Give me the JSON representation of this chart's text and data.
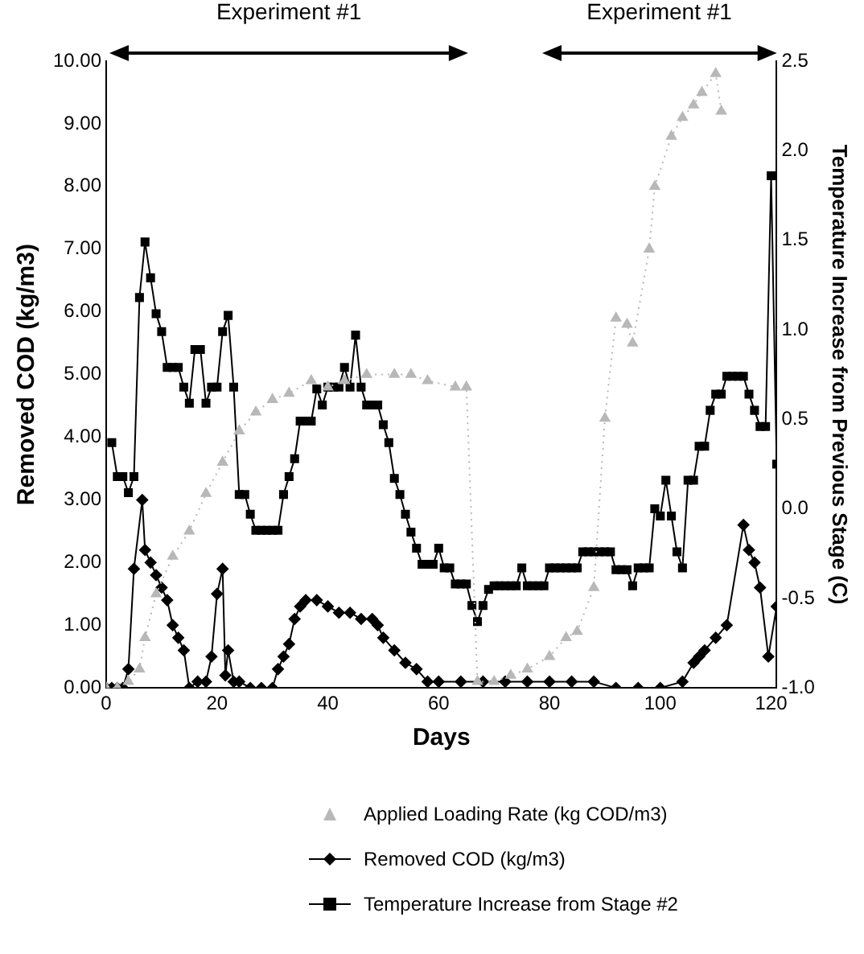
{
  "chart_data": {
    "type": "line",
    "xlabel": "Days",
    "ylabel": "Removed COD (kg/m3)",
    "y2label": "Temperature Increase from Previous Stage (C)",
    "xlim": [
      0,
      121
    ],
    "xticks": [
      0,
      20,
      40,
      60,
      80,
      100,
      120
    ],
    "ylim": [
      0,
      10
    ],
    "yticks": [
      {
        "value": 0,
        "label": "0.00"
      },
      {
        "value": 1,
        "label": "1.00"
      },
      {
        "value": 2,
        "label": "2.00"
      },
      {
        "value": 3,
        "label": "3.00"
      },
      {
        "value": 4,
        "label": "4.00"
      },
      {
        "value": 5,
        "label": "5.00"
      },
      {
        "value": 6,
        "label": "6.00"
      },
      {
        "value": 7,
        "label": "7.00"
      },
      {
        "value": 8,
        "label": "8.00"
      },
      {
        "value": 9,
        "label": "9.00"
      },
      {
        "value": 10,
        "label": "10.00"
      }
    ],
    "y2lim": [
      -1,
      2.5
    ],
    "y2ticks": [
      {
        "value": -1,
        "label": "-1.0"
      },
      -0.5,
      {
        "value": 0,
        "label": "0.0"
      },
      0.5,
      {
        "value": 1,
        "label": "1.0"
      },
      1.5,
      {
        "value": 2,
        "label": "2.0"
      },
      2.5
    ],
    "grid": false,
    "legend": "bottom",
    "annotations": [
      "Experiment #1",
      "Experiment #1"
    ],
    "series": [
      {
        "name": "Applied Loading Rate (kg COD/m3)",
        "color": "#b8b8b8",
        "marker": "triangle",
        "line_style": "dotted",
        "x": [
          0,
          2,
          4,
          6,
          7,
          9,
          12,
          15,
          18,
          21,
          24,
          27,
          30,
          33,
          37,
          40,
          43,
          47,
          52,
          55,
          58,
          63,
          65,
          67,
          70,
          73,
          76,
          80,
          83,
          85,
          88,
          90,
          92,
          94,
          95,
          98,
          99,
          102,
          104,
          106,
          107.5,
          110,
          111
        ],
        "values": [
          0,
          0,
          0.1,
          0.3,
          0.8,
          1.5,
          2.1,
          2.5,
          3.1,
          3.6,
          4.1,
          4.4,
          4.6,
          4.7,
          4.9,
          4.8,
          4.9,
          5.0,
          5.0,
          5.0,
          4.9,
          4.8,
          4.8,
          0.1,
          0.1,
          0.2,
          0.3,
          0.5,
          0.8,
          0.9,
          1.6,
          4.3,
          5.9,
          5.8,
          5.5,
          7.0,
          8.0,
          8.8,
          9.1,
          9.3,
          9.5,
          9.8,
          9.2
        ]
      },
      {
        "name": "Removed COD (kg/m3)",
        "color": "#000000",
        "marker": "diamond",
        "x": [
          0,
          1,
          2,
          3,
          4,
          5,
          6.5,
          7,
          8,
          9,
          10,
          11,
          12,
          13,
          14,
          15,
          16.5,
          18,
          19,
          20,
          21,
          21.5,
          22,
          23,
          24,
          26,
          28,
          30,
          31,
          32,
          33,
          34,
          35,
          36,
          38,
          40,
          42,
          44,
          46,
          48,
          49,
          50,
          52,
          54,
          56,
          58,
          60,
          64,
          68,
          72,
          76,
          80,
          84,
          88,
          92,
          96,
          100,
          104,
          106,
          107,
          108,
          110,
          112,
          115,
          116,
          117,
          118,
          119.5,
          121
        ],
        "values": [
          0,
          0,
          0,
          0,
          0.3,
          1.9,
          3.0,
          2.2,
          2.0,
          1.8,
          1.6,
          1.4,
          1.0,
          0.8,
          0.6,
          0,
          0.1,
          0.1,
          0.5,
          1.5,
          1.9,
          0.2,
          0.6,
          0.1,
          0.1,
          0,
          0,
          0,
          0.3,
          0.5,
          0.7,
          1.1,
          1.3,
          1.4,
          1.4,
          1.3,
          1.2,
          1.2,
          1.1,
          1.1,
          1.0,
          0.8,
          0.6,
          0.4,
          0.3,
          0.1,
          0.1,
          0.1,
          0.1,
          0.1,
          0.1,
          0.1,
          0.1,
          0.1,
          0,
          0,
          0,
          0.1,
          0.4,
          0.5,
          0.6,
          0.8,
          1.0,
          2.6,
          2.2,
          2.0,
          1.6,
          0.5,
          1.3
        ]
      },
      {
        "name": "Temperature Increase from Stage #2",
        "color": "#000000",
        "marker": "square",
        "axis": "y2",
        "x": [
          1,
          2,
          3,
          4,
          5,
          6,
          7,
          8,
          9,
          10,
          11,
          12,
          13,
          14,
          15,
          16,
          17,
          18,
          19,
          20,
          21,
          22,
          23,
          24,
          25,
          26,
          27,
          28,
          29,
          30,
          31,
          32,
          33,
          34,
          35,
          36,
          37,
          38,
          39,
          40,
          41,
          42,
          43,
          44,
          45,
          46,
          47,
          48,
          49,
          50,
          51,
          52,
          53,
          54,
          55,
          56,
          57,
          58,
          59,
          60,
          61,
          62,
          63,
          64,
          65,
          66,
          67,
          68,
          69,
          70,
          71,
          72,
          73,
          74,
          75,
          76,
          77,
          78,
          79,
          80,
          81,
          82,
          83,
          84,
          85,
          86,
          87,
          88,
          89,
          90,
          91,
          92,
          93,
          94,
          95,
          96,
          97,
          98,
          99,
          100,
          101,
          102,
          103,
          104,
          105,
          106,
          107,
          108,
          109,
          110,
          111,
          112,
          113,
          114,
          115,
          116,
          117,
          118,
          119,
          120,
          121
        ],
        "values": [
          0.37,
          0.18,
          0.18,
          0.09,
          0.18,
          1.18,
          1.49,
          1.29,
          1.09,
          0.99,
          0.79,
          0.79,
          0.79,
          0.68,
          0.59,
          0.89,
          0.89,
          0.59,
          0.68,
          0.68,
          0.99,
          1.08,
          0.68,
          0.08,
          0.08,
          -0.03,
          -0.12,
          -0.12,
          -0.12,
          -0.12,
          -0.12,
          0.08,
          0.18,
          0.28,
          0.49,
          0.49,
          0.49,
          0.67,
          0.58,
          0.68,
          0.68,
          0.68,
          0.79,
          0.68,
          0.97,
          0.68,
          0.58,
          0.58,
          0.58,
          0.47,
          0.37,
          0.17,
          0.08,
          -0.03,
          -0.13,
          -0.22,
          -0.31,
          -0.31,
          -0.31,
          -0.22,
          -0.33,
          -0.33,
          -0.42,
          -0.42,
          -0.42,
          -0.54,
          -0.63,
          -0.54,
          -0.45,
          -0.43,
          -0.43,
          -0.43,
          -0.43,
          -0.43,
          -0.33,
          -0.43,
          -0.43,
          -0.43,
          -0.43,
          -0.33,
          -0.33,
          -0.33,
          -0.33,
          -0.33,
          -0.33,
          -0.24,
          -0.24,
          -0.24,
          -0.24,
          -0.24,
          -0.24,
          -0.34,
          -0.34,
          -0.34,
          -0.43,
          -0.33,
          -0.33,
          -0.33,
          0.0,
          -0.04,
          0.16,
          -0.04,
          -0.24,
          -0.33,
          0.16,
          0.16,
          0.35,
          0.35,
          0.55,
          0.64,
          0.64,
          0.74,
          0.74,
          0.74,
          0.74,
          0.64,
          0.55,
          0.46,
          0.46,
          1.86,
          0.25
        ]
      }
    ]
  }
}
